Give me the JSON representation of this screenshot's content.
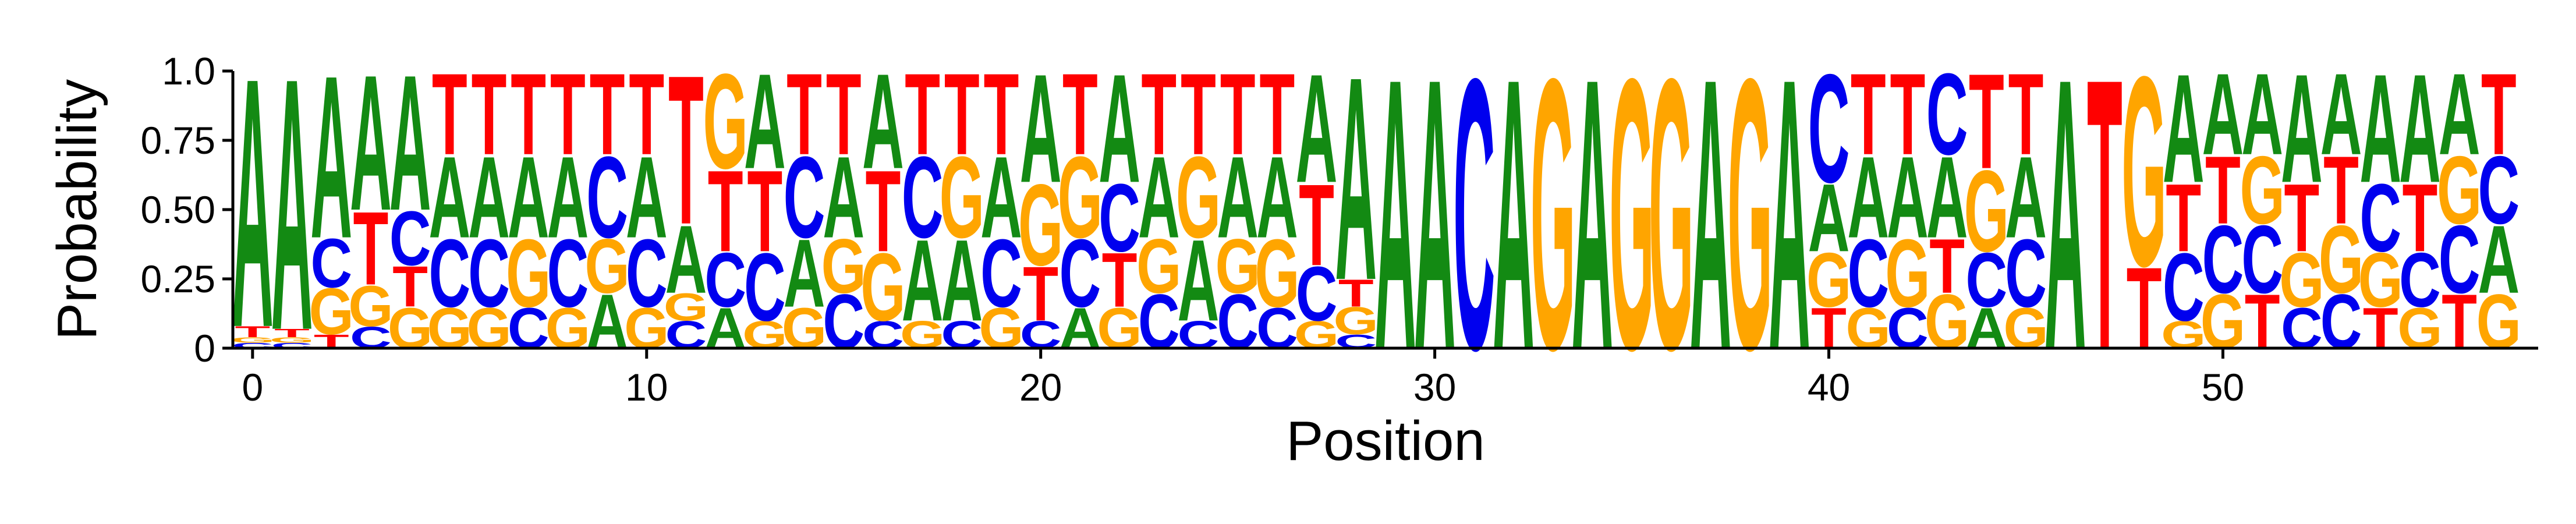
{
  "chart_data": {
    "type": "sequence-logo",
    "xlabel": "Position",
    "ylabel": "Probability",
    "x_ticks": [
      0,
      10,
      20,
      30,
      40,
      50
    ],
    "y_ticks": [
      "0",
      "0.25",
      "0.50",
      "0.75",
      "1.0"
    ],
    "xlim": [
      -0.5,
      58
    ],
    "ylim": [
      0,
      1.0
    ],
    "colors": {
      "A": "#138a13",
      "C": "#0000ee",
      "G": "#ffa500",
      "T": "#ff0000"
    },
    "positions": [
      {
        "A": 0.92,
        "C": 0.02,
        "G": 0.02,
        "T": 0.04
      },
      {
        "A": 0.93,
        "C": 0.02,
        "G": 0.02,
        "T": 0.03
      },
      {
        "A": 0.6,
        "C": 0.18,
        "G": 0.17,
        "T": 0.05
      },
      {
        "A": 0.5,
        "C": 0.08,
        "G": 0.15,
        "T": 0.27
      },
      {
        "A": 0.5,
        "C": 0.2,
        "G": 0.15,
        "T": 0.15
      },
      {
        "A": 0.3,
        "C": 0.25,
        "G": 0.15,
        "T": 0.3
      },
      {
        "A": 0.3,
        "C": 0.25,
        "G": 0.15,
        "T": 0.3
      },
      {
        "A": 0.3,
        "C": 0.15,
        "G": 0.25,
        "T": 0.3
      },
      {
        "A": 0.3,
        "C": 0.25,
        "G": 0.15,
        "T": 0.3
      },
      {
        "A": 0.2,
        "C": 0.3,
        "G": 0.2,
        "T": 0.3
      },
      {
        "A": 0.3,
        "C": 0.25,
        "G": 0.15,
        "T": 0.3
      },
      {
        "A": 0.25,
        "C": 0.1,
        "G": 0.1,
        "T": 0.55
      },
      {
        "A": 0.15,
        "C": 0.2,
        "G": 0.35,
        "T": 0.3
      },
      {
        "A": 0.35,
        "C": 0.25,
        "G": 0.1,
        "T": 0.3
      },
      {
        "A": 0.25,
        "C": 0.3,
        "G": 0.15,
        "T": 0.3
      },
      {
        "A": 0.3,
        "C": 0.2,
        "G": 0.2,
        "T": 0.3
      },
      {
        "A": 0.35,
        "C": 0.1,
        "G": 0.25,
        "T": 0.3
      },
      {
        "A": 0.3,
        "C": 0.3,
        "G": 0.1,
        "T": 0.3
      },
      {
        "A": 0.3,
        "C": 0.1,
        "G": 0.3,
        "T": 0.3
      },
      {
        "A": 0.3,
        "C": 0.25,
        "G": 0.15,
        "T": 0.3
      },
      {
        "A": 0.4,
        "C": 0.1,
        "G": 0.3,
        "T": 0.2
      },
      {
        "A": 0.15,
        "C": 0.25,
        "G": 0.3,
        "T": 0.3
      },
      {
        "A": 0.4,
        "C": 0.25,
        "G": 0.15,
        "T": 0.2
      },
      {
        "A": 0.3,
        "C": 0.2,
        "G": 0.2,
        "T": 0.3
      },
      {
        "A": 0.3,
        "C": 0.1,
        "G": 0.3,
        "T": 0.3
      },
      {
        "A": 0.3,
        "C": 0.2,
        "G": 0.2,
        "T": 0.3
      },
      {
        "A": 0.3,
        "C": 0.15,
        "G": 0.25,
        "T": 0.3
      },
      {
        "A": 0.4,
        "C": 0.2,
        "G": 0.1,
        "T": 0.3
      },
      {
        "A": 0.75,
        "C": 0.05,
        "G": 0.1,
        "T": 0.1
      },
      {
        "A": 1.0,
        "C": 0.0,
        "G": 0.0,
        "T": 0.0
      },
      {
        "A": 1.0,
        "C": 0.0,
        "G": 0.0,
        "T": 0.0
      },
      {
        "A": 0.0,
        "C": 1.0,
        "G": 0.0,
        "T": 0.0
      },
      {
        "A": 1.0,
        "C": 0.0,
        "G": 0.0,
        "T": 0.0
      },
      {
        "A": 0.0,
        "C": 0.0,
        "G": 1.0,
        "T": 0.0
      },
      {
        "A": 1.0,
        "C": 0.0,
        "G": 0.0,
        "T": 0.0
      },
      {
        "A": 0.0,
        "C": 0.0,
        "G": 1.0,
        "T": 0.0
      },
      {
        "A": 0.0,
        "C": 0.0,
        "G": 1.0,
        "T": 0.0
      },
      {
        "A": 1.0,
        "C": 0.0,
        "G": 0.0,
        "T": 0.0
      },
      {
        "A": 0.0,
        "C": 0.0,
        "G": 1.0,
        "T": 0.0
      },
      {
        "A": 1.0,
        "C": 0.0,
        "G": 0.0,
        "T": 0.0
      },
      {
        "A": 0.25,
        "C": 0.4,
        "G": 0.2,
        "T": 0.15
      },
      {
        "A": 0.3,
        "C": 0.25,
        "G": 0.15,
        "T": 0.3
      },
      {
        "A": 0.3,
        "C": 0.15,
        "G": 0.25,
        "T": 0.3
      },
      {
        "A": 0.3,
        "C": 0.3,
        "G": 0.2,
        "T": 0.2
      },
      {
        "A": 0.15,
        "C": 0.2,
        "G": 0.3,
        "T": 0.35
      },
      {
        "A": 0.3,
        "C": 0.25,
        "G": 0.15,
        "T": 0.3
      },
      {
        "A": 1.0,
        "C": 0.0,
        "G": 0.0,
        "T": 0.0
      },
      {
        "A": 0.0,
        "C": 0.0,
        "G": 0.0,
        "T": 1.0
      },
      {
        "A": 0.0,
        "C": 0.0,
        "G": 0.7,
        "T": 0.3
      },
      {
        "A": 0.4,
        "C": 0.25,
        "G": 0.1,
        "T": 0.25
      },
      {
        "A": 0.3,
        "C": 0.25,
        "G": 0.2,
        "T": 0.25
      },
      {
        "A": 0.3,
        "C": 0.25,
        "G": 0.25,
        "T": 0.2
      },
      {
        "A": 0.4,
        "C": 0.15,
        "G": 0.2,
        "T": 0.25
      },
      {
        "A": 0.3,
        "C": 0.2,
        "G": 0.25,
        "T": 0.25
      },
      {
        "A": 0.4,
        "C": 0.25,
        "G": 0.2,
        "T": 0.15
      },
      {
        "A": 0.4,
        "C": 0.2,
        "G": 0.15,
        "T": 0.25
      },
      {
        "A": 0.3,
        "C": 0.25,
        "G": 0.25,
        "T": 0.2
      },
      {
        "A": 0.25,
        "C": 0.25,
        "G": 0.2,
        "T": 0.3
      }
    ]
  }
}
